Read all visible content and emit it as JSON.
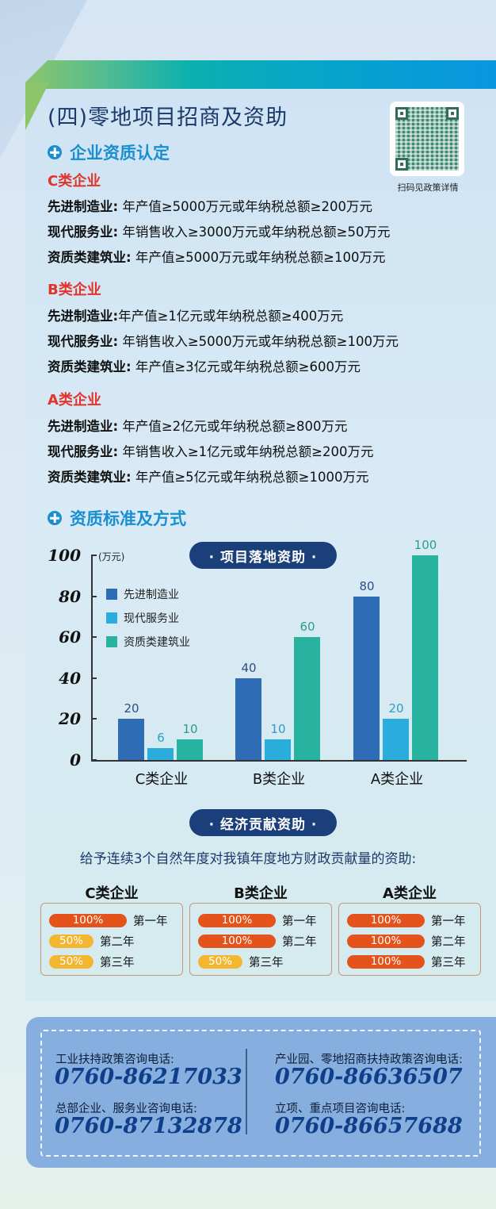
{
  "title": "(四)零地项目招商及资助",
  "qr": {
    "caption": "扫码见政策详情"
  },
  "section1": {
    "title": "企业资质认定",
    "tiers": [
      {
        "name": "C类企业",
        "rows": [
          {
            "label": "先进制造业:",
            "text": "年产值≥5000万元或年纳税总额≥200万元"
          },
          {
            "label": "现代服务业:",
            "text": "年销售收入≥3000万元或年纳税总额≥50万元"
          },
          {
            "label": "资质类建筑业:",
            "text": "年产值≥5000万元或年纳税总额≥100万元"
          }
        ]
      },
      {
        "name": "B类企业",
        "rows": [
          {
            "label": "先进制造业:",
            "text": "年产值≥1亿元或年纳税总额≥400万元"
          },
          {
            "label": "现代服务业:",
            "text": "年销售收入≥5000万元或年纳税总额≥100万元"
          },
          {
            "label": "资质类建筑业:",
            "text": "年产值≥3亿元或年纳税总额≥600万元"
          }
        ]
      },
      {
        "name": "A类企业",
        "rows": [
          {
            "label": "先进制造业:",
            "text": "年产值≥2亿元或年纳税总额≥800万元"
          },
          {
            "label": "现代服务业:",
            "text": "年销售收入≥1亿元或年纳税总额≥200万元"
          },
          {
            "label": "资质类建筑业:",
            "text": "年产值≥5亿元或年纳税总额≥1000万元"
          }
        ]
      }
    ]
  },
  "section2": {
    "title": "资质标准及方式"
  },
  "chart_data": {
    "type": "bar",
    "title": "· 项目落地资助 ·",
    "ylabel": "(万元)",
    "xlabel": "",
    "ylim": [
      0,
      100
    ],
    "yticks": [
      "0",
      "20",
      "40",
      "60",
      "80",
      "100"
    ],
    "grid": false,
    "legend_position": "upper-left",
    "categories": [
      "C类企业",
      "B类企业",
      "A类企业"
    ],
    "series": [
      {
        "name": "先进制造业",
        "color": "#2e6cb5",
        "values": [
          20,
          40,
          80
        ]
      },
      {
        "name": "现代服务业",
        "color": "#2aacdc",
        "values": [
          6,
          10,
          20
        ]
      },
      {
        "name": "资质类建筑业",
        "color": "#27b39f",
        "values": [
          10,
          60,
          100
        ]
      }
    ]
  },
  "econ": {
    "title": "· 经济贡献资助 ·",
    "description": "给予连续3个自然年度对我镇年度地方财政贡献量的资助:",
    "tiers": [
      {
        "name": "C类企业",
        "rates": [
          {
            "pct": "100%",
            "year": "第一年",
            "kind": "full"
          },
          {
            "pct": "50%",
            "year": "第二年",
            "kind": "half"
          },
          {
            "pct": "50%",
            "year": "第三年",
            "kind": "half"
          }
        ]
      },
      {
        "name": "B类企业",
        "rates": [
          {
            "pct": "100%",
            "year": "第一年",
            "kind": "full"
          },
          {
            "pct": "100%",
            "year": "第二年",
            "kind": "full"
          },
          {
            "pct": "50%",
            "year": "第三年",
            "kind": "half"
          }
        ]
      },
      {
        "name": "A类企业",
        "rates": [
          {
            "pct": "100%",
            "year": "第一年",
            "kind": "full"
          },
          {
            "pct": "100%",
            "year": "第二年",
            "kind": "full"
          },
          {
            "pct": "100%",
            "year": "第三年",
            "kind": "full"
          }
        ]
      }
    ],
    "colors": {
      "full": "#e4531b",
      "half": "#f3b630"
    }
  },
  "contacts": [
    {
      "label": "工业扶持政策咨询电话:",
      "phone": "0760-86217033"
    },
    {
      "label": "总部企业、服务业咨询电话:",
      "phone": "0760-87132878"
    },
    {
      "label": "产业园、零地招商扶持政策咨询电话:",
      "phone": "0760-86636507"
    },
    {
      "label": "立项、重点项目咨询电话:",
      "phone": "0760-86657688"
    }
  ]
}
